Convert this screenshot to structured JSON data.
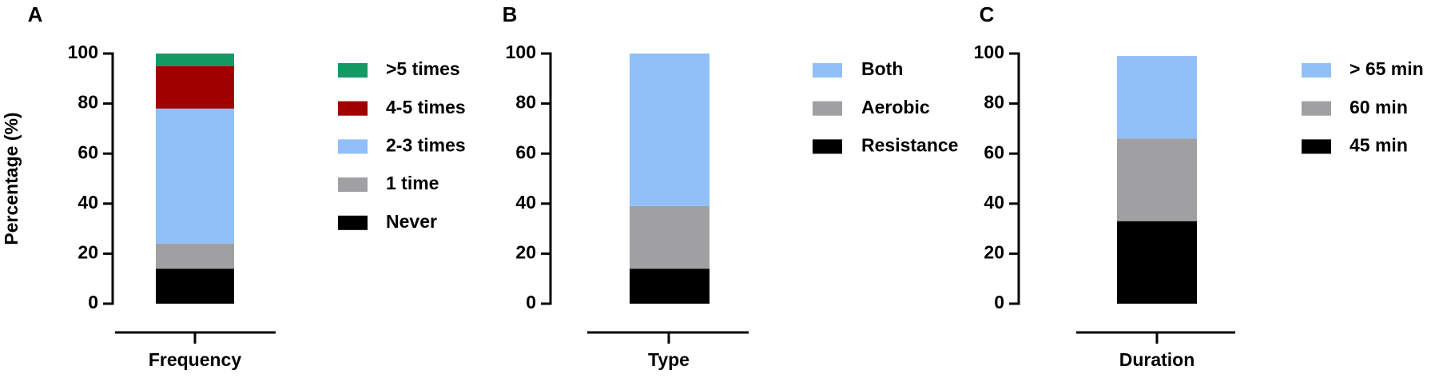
{
  "chart_data": [
    {
      "type": "bar",
      "stacked": true,
      "panel_label": "A",
      "ylabel": "Percentage (%)",
      "categories": [
        "Frequency"
      ],
      "ylim": [
        0,
        100
      ],
      "yticks": [
        0,
        20,
        40,
        60,
        80,
        100
      ],
      "series": [
        {
          "name": "Never",
          "color": "#000000",
          "values": [
            14
          ]
        },
        {
          "name": "1 time",
          "color": "#a0a0a3",
          "values": [
            10
          ]
        },
        {
          "name": "2-3 times",
          "color": "#91bff8",
          "values": [
            54
          ]
        },
        {
          "name": "4-5 times",
          "color": "#a00000",
          "values": [
            17
          ]
        },
        {
          "name": ">5 times",
          "color": "#149a65",
          "values": [
            5
          ]
        }
      ]
    },
    {
      "type": "bar",
      "stacked": true,
      "panel_label": "B",
      "categories": [
        "Type"
      ],
      "ylim": [
        0,
        100
      ],
      "yticks": [
        0,
        20,
        40,
        60,
        80,
        100
      ],
      "series": [
        {
          "name": "Resistance",
          "color": "#000000",
          "values": [
            14
          ]
        },
        {
          "name": "Aerobic",
          "color": "#a0a0a3",
          "values": [
            25
          ]
        },
        {
          "name": "Both",
          "color": "#91bff8",
          "values": [
            61
          ]
        }
      ]
    },
    {
      "type": "bar",
      "stacked": true,
      "panel_label": "C",
      "categories": [
        "Duration"
      ],
      "ylim": [
        0,
        100
      ],
      "yticks": [
        0,
        20,
        40,
        60,
        80,
        100
      ],
      "series": [
        {
          "name": "45 min",
          "color": "#000000",
          "values": [
            33
          ]
        },
        {
          "name": "60 min",
          "color": "#a0a0a3",
          "values": [
            33
          ]
        },
        {
          "name": "> 65 min",
          "color": "#91bff8",
          "values": [
            33
          ]
        }
      ]
    }
  ]
}
